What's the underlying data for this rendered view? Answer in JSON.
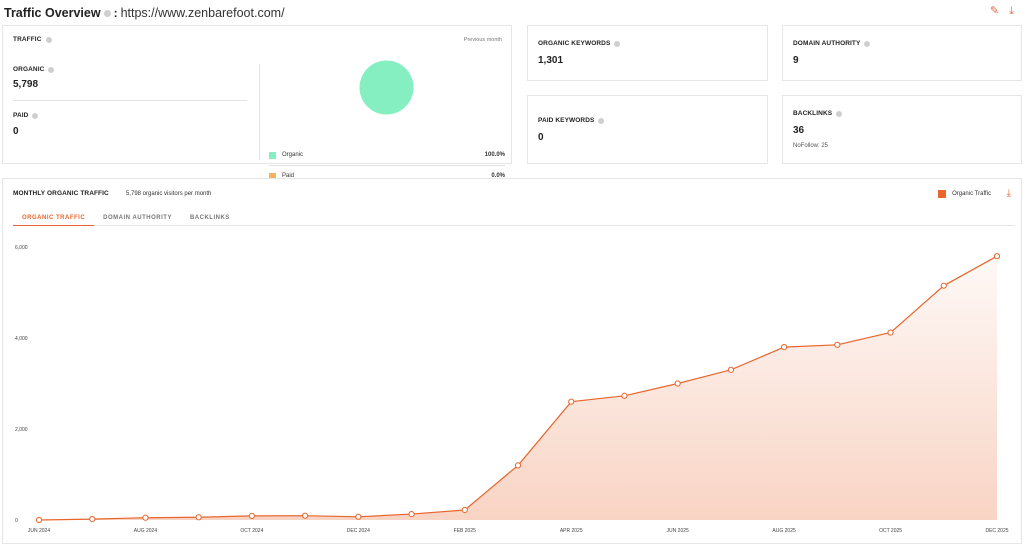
{
  "header": {
    "title": "Traffic Overview",
    "separator": ":",
    "url": "https://www.zenbarefoot.com/"
  },
  "traffic": {
    "label": "TRAFFIC",
    "previous": "Previous month",
    "organic_label": "ORGANIC",
    "organic_value": "5,798",
    "paid_label": "PAID",
    "paid_value": "0",
    "legend": [
      {
        "label": "Organic",
        "pct": "100.0%",
        "color": "#86efc2"
      },
      {
        "label": "Paid",
        "pct": "0.0%",
        "color": "#f5b461"
      }
    ]
  },
  "organic_keywords": {
    "label": "ORGANIC KEYWORDS",
    "value": "1,301"
  },
  "domain_authority": {
    "label": "DOMAIN AUTHORITY",
    "value": "9"
  },
  "paid_keywords": {
    "label": "PAID KEYWORDS",
    "value": "0"
  },
  "backlinks": {
    "label": "BACKLINKS",
    "value": "36",
    "nofollow": "NoFollow: 25"
  },
  "monthly": {
    "title": "MONTHLY ORGANIC TRAFFIC",
    "subtitle": "5,798 organic visitors per month",
    "legend": "Organic Traffic",
    "tabs": [
      "ORGANIC TRAFFIC",
      "DOMAIN AUTHORITY",
      "BACKLINKS"
    ],
    "active_tab": 0
  },
  "colors": {
    "accent": "#e8652d",
    "organic": "#86efc2",
    "paid": "#f5b461"
  },
  "chart_data": {
    "type": "area",
    "series": [
      {
        "name": "Organic Traffic",
        "values": [
          0,
          20,
          50,
          60,
          90,
          95,
          70,
          130,
          220,
          1200,
          2600,
          2730,
          3000,
          3300,
          3800,
          3850,
          4120,
          5150,
          5798
        ]
      }
    ],
    "x": [
      "Jun 2024",
      "Jul 2024",
      "Aug 2024",
      "Sep 2024",
      "Oct 2024",
      "Nov 2024",
      "Dec 2024",
      "Jan 2025",
      "Feb 2025",
      "Mar 2025",
      "Apr 2025",
      "May 2025",
      "Jun 2025",
      "Jul 2025",
      "Aug 2025",
      "Sep 2025",
      "Oct 2025",
      "Nov 2025",
      "Dec 2025"
    ],
    "xtick_labels": [
      "JUN 2024",
      "AUG 2024",
      "OCT 2024",
      "DEC 2024",
      "FEB 2025",
      "APR 2025",
      "JUN 2025",
      "AUG 2025",
      "OCT 2025",
      "DEC 2025"
    ],
    "xtick_indices": [
      0,
      2,
      4,
      6,
      8,
      10,
      12,
      14,
      16,
      18
    ],
    "ytick_labels": [
      "0",
      "2,000",
      "4,000",
      "6,000"
    ],
    "yticks": [
      0,
      2000,
      4000,
      6000
    ],
    "ylim": [
      0,
      6000
    ],
    "grid": false,
    "legend": "top-right"
  }
}
